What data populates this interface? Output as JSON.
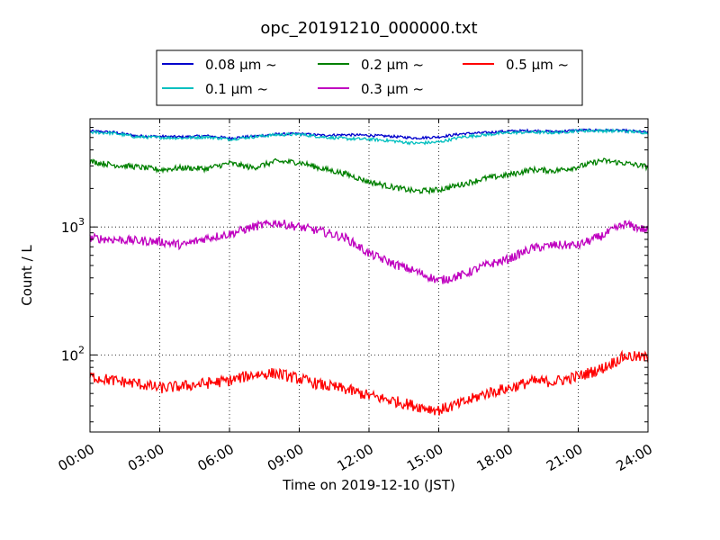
{
  "chart_data": {
    "type": "line",
    "title": "opc_20191210_000000.txt",
    "xlabel": "Time on 2019-12-10 (JST)",
    "ylabel": "Count / L",
    "yscale": "log",
    "xlim": [
      "00:00",
      "24:00"
    ],
    "ylim": [
      25,
      7000
    ],
    "x_ticks": [
      "00:00",
      "03:00",
      "06:00",
      "09:00",
      "12:00",
      "15:00",
      "18:00",
      "21:00",
      "24:00"
    ],
    "y_ticks": [
      {
        "value": 100,
        "base": "10",
        "exp": "2"
      },
      {
        "value": 1000,
        "base": "10",
        "exp": "3"
      }
    ],
    "grid": true,
    "legend_position": "top",
    "x_hours": [
      0,
      1,
      2,
      3,
      4,
      5,
      6,
      7,
      8,
      9,
      10,
      11,
      12,
      13,
      14,
      15,
      16,
      17,
      18,
      19,
      20,
      21,
      22,
      23,
      24
    ],
    "series": [
      {
        "name": "0.08 μm ~",
        "color": "#0000cc",
        "values": [
          5600,
          5500,
          5150,
          5100,
          5050,
          5150,
          4950,
          5100,
          5300,
          5350,
          5200,
          5250,
          5200,
          5100,
          4950,
          5050,
          5350,
          5450,
          5600,
          5650,
          5550,
          5700,
          5700,
          5650,
          5500
        ]
      },
      {
        "name": "0.1 μm ~",
        "color": "#00bfbf",
        "values": [
          5500,
          5400,
          5050,
          5000,
          4950,
          5050,
          4850,
          5050,
          5250,
          5300,
          5050,
          4900,
          4850,
          4700,
          4500,
          4600,
          5050,
          5250,
          5450,
          5500,
          5450,
          5650,
          5650,
          5600,
          5450
        ]
      },
      {
        "name": "0.2 μm ~",
        "color": "#008000",
        "values": [
          3250,
          3050,
          2950,
          2800,
          2900,
          2850,
          3150,
          2900,
          3250,
          3200,
          2850,
          2600,
          2250,
          2050,
          1900,
          1950,
          2150,
          2400,
          2550,
          2800,
          2750,
          2950,
          3300,
          3150,
          2950
        ]
      },
      {
        "name": "0.3 μm ~",
        "color": "#bf00bf",
        "values": [
          820,
          800,
          780,
          770,
          720,
          820,
          880,
          1000,
          1080,
          1000,
          920,
          820,
          620,
          520,
          450,
          380,
          420,
          500,
          560,
          680,
          720,
          720,
          850,
          1050,
          940
        ]
      },
      {
        "name": "0.5 μm ~",
        "color": "#ff0000",
        "values": [
          68,
          63,
          60,
          55,
          57,
          60,
          63,
          70,
          72,
          65,
          58,
          54,
          48,
          44,
          40,
          37,
          42,
          50,
          55,
          62,
          62,
          68,
          78,
          98,
          95
        ]
      }
    ]
  }
}
